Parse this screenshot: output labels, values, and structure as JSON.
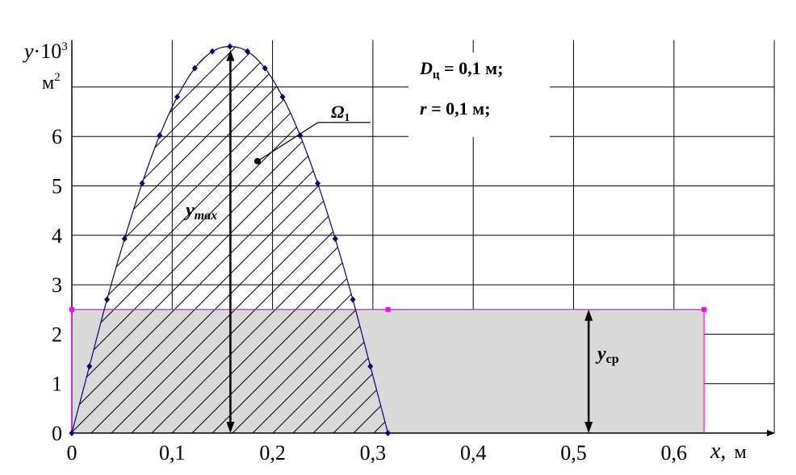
{
  "chart_data": {
    "type": "line",
    "grid": true,
    "xlim": [
      0,
      0.7
    ],
    "ylim": [
      0,
      7.8
    ],
    "x_ticks": [
      "0",
      "0,1",
      "0,2",
      "0,3",
      "0,4",
      "0,5",
      "0,6"
    ],
    "y_ticks": [
      "0",
      "1",
      "2",
      "3",
      "4",
      "5",
      "6"
    ],
    "xlabel": {
      "var": "x,",
      "unit": "м"
    },
    "ylabel": {
      "var": "y",
      "dot": "·",
      "base": "10",
      "exp": "3",
      "unit": "м",
      "unit_exp": "2"
    },
    "series": [
      {
        "color": "#00007b",
        "x": [
          0,
          0.0175,
          0.035,
          0.0525,
          0.07,
          0.0875,
          0.105,
          0.1225,
          0.14,
          0.1575,
          0.175,
          0.1925,
          0.21,
          0.2275,
          0.245,
          0.2625,
          0.28,
          0.2975,
          0.315
        ],
        "y": [
          0,
          1.35,
          2.7,
          3.93,
          5.05,
          6.02,
          6.8,
          7.38,
          7.72,
          7.82,
          7.72,
          7.38,
          6.8,
          6.02,
          5.05,
          3.93,
          2.7,
          1.35,
          0
        ]
      },
      {
        "color": "#ff00ff",
        "x": [
          0,
          0.315,
          0.63
        ],
        "y": [
          2.5,
          2.5,
          2.5
        ]
      }
    ],
    "annotations": {
      "ymax": {
        "base": "y",
        "sub": "max",
        "x": 0.158,
        "y_from": 0,
        "y_to": 7.82
      },
      "ycp": {
        "base": "y",
        "sub": "ср",
        "x": 0.515,
        "y_from": 0,
        "y_to": 2.5
      },
      "omega": {
        "base": "Ω",
        "sub": "1",
        "point": [
          0.185,
          5.5
        ]
      }
    },
    "info": {
      "line1": {
        "var": "D",
        "sub": "ц",
        "rest": " = 0,1 м;"
      },
      "line2": {
        "text": "r",
        "rest": " = 0,1 м;"
      }
    }
  }
}
